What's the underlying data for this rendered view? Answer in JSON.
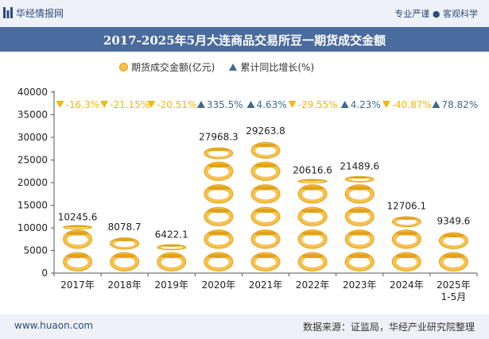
{
  "header": {
    "brand": "华经情报网",
    "tags": "专业严谨 ● 客观科学",
    "title": "2017-2025年5月大连商品交易所豆一期货成交金额"
  },
  "legend": {
    "series1": "期货成交金额(亿元)",
    "series2": "累计同比增长(%)"
  },
  "footer": {
    "left": "www.huaon.com",
    "right": "数据来源：证监局，华经产业研究院整理"
  },
  "colors": {
    "coin": "#f6c14c",
    "coin_edge": "#e2a21a",
    "up": "#3f6a8e",
    "down": "#f5b800",
    "accent": "#4a6b9d"
  },
  "chart_data": {
    "type": "bar",
    "categories": [
      "2017年",
      "2018年",
      "2019年",
      "2020年",
      "2021年",
      "2022年",
      "2023年",
      "2024年",
      "2025年\n1-5月"
    ],
    "series": [
      {
        "name": "期货成交金额(亿元)",
        "values": [
          10245.6,
          8078.7,
          6422.1,
          27968.3,
          29263.8,
          20616.6,
          21489.6,
          12706.1,
          9349.6
        ],
        "labels": [
          "10245.6",
          "8078.7",
          "6422.1",
          "27968.3",
          "29263.8",
          "20616.6",
          "21489.6",
          "12706.1",
          "9349.6"
        ]
      },
      {
        "name": "累计同比增长(%)",
        "values": [
          -16.3,
          -21.15,
          -20.51,
          335.5,
          4.63,
          -29.55,
          4.23,
          -40.87,
          78.82
        ],
        "labels": [
          "-16.3%",
          "-21.15%",
          "-20.51%",
          "335.5%",
          "4.63%",
          "-29.55%",
          "4.23%",
          "-40.87%",
          "78.82%"
        ]
      }
    ],
    "yticks": [
      "0",
      "5000",
      "10000",
      "15000",
      "20000",
      "25000",
      "30000",
      "35000",
      "40000"
    ],
    "ylim": [
      0,
      40000
    ],
    "grid": false,
    "legend_position": "top"
  }
}
